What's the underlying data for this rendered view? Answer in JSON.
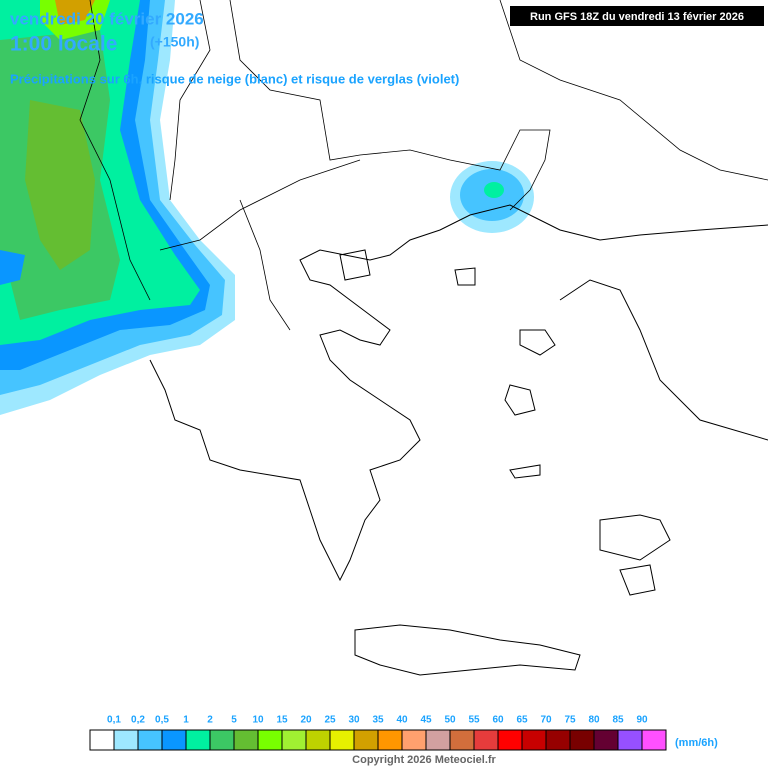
{
  "header": {
    "date": "vendredi 20 février 2026",
    "time": "1:00 locale",
    "lead": "(+150h)",
    "subtitle": "Précipitations sur 6h, risque de neige (blanc) et risque de verglas (violet)"
  },
  "run_info": "Run GFS 18Z du vendredi 13 février 2026",
  "legend": {
    "labels": [
      "0,1",
      "0,2",
      "0,5",
      "1",
      "2",
      "5",
      "10",
      "15",
      "20",
      "25",
      "30",
      "35",
      "40",
      "45",
      "50",
      "55",
      "60",
      "65",
      "70",
      "75",
      "80",
      "85",
      "90"
    ],
    "colors": [
      "#ffffff",
      "#9ee8ff",
      "#46c4ff",
      "#0a96ff",
      "#00f0a0",
      "#3cc864",
      "#64be32",
      "#78ff00",
      "#a0f032",
      "#bed200",
      "#e6f000",
      "#d2a000",
      "#ff9600",
      "#ffa06e",
      "#d2a0a0",
      "#d26e3c",
      "#e63c3c",
      "#ff0000",
      "#c80000",
      "#960000",
      "#780000",
      "#640032",
      "#9650ff",
      "#ff50ff"
    ],
    "unit": "(mm/6h)"
  },
  "copyright": "Copyright 2026 Meteociel.fr"
}
